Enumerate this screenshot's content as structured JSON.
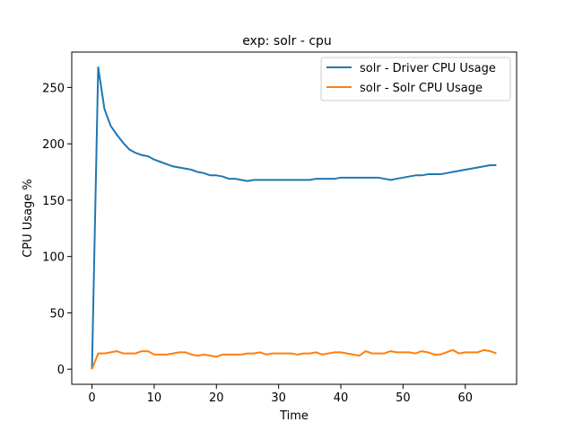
{
  "chart_data": {
    "type": "line",
    "title": "exp: solr - cpu",
    "xlabel": "Time",
    "ylabel": "CPU Usage %",
    "xlim": [
      -3.25,
      68.25
    ],
    "ylim": [
      -13.4,
      281.4
    ],
    "xticks": [
      0,
      10,
      20,
      30,
      40,
      50,
      60
    ],
    "yticks": [
      0,
      50,
      100,
      150,
      200,
      250
    ],
    "grid": false,
    "legend_position": "top-right",
    "x": [
      0,
      1,
      2,
      3,
      4,
      5,
      6,
      7,
      8,
      9,
      10,
      11,
      12,
      13,
      14,
      15,
      16,
      17,
      18,
      19,
      20,
      21,
      22,
      23,
      24,
      25,
      26,
      27,
      28,
      29,
      30,
      31,
      32,
      33,
      34,
      35,
      36,
      37,
      38,
      39,
      40,
      41,
      42,
      43,
      44,
      45,
      46,
      47,
      48,
      49,
      50,
      51,
      52,
      53,
      54,
      55,
      56,
      57,
      58,
      59,
      60,
      61,
      62,
      63,
      64,
      65
    ],
    "series": [
      {
        "name": "solr - Driver CPU Usage",
        "color": "#1f77b4",
        "values": [
          0,
          268,
          231,
          216,
          208,
          201,
          195,
          192,
          190,
          189,
          186,
          184,
          182,
          180,
          179,
          178,
          177,
          175,
          174,
          172,
          172,
          171,
          169,
          169,
          168,
          167,
          168,
          168,
          168,
          168,
          168,
          168,
          168,
          168,
          168,
          168,
          169,
          169,
          169,
          169,
          170,
          170,
          170,
          170,
          170,
          170,
          170,
          169,
          168,
          169,
          170,
          171,
          172,
          172,
          173,
          173,
          173,
          174,
          175,
          176,
          177,
          178,
          179,
          180,
          181,
          181
        ]
      },
      {
        "name": "solr - Solr CPU Usage",
        "color": "#ff7f0e",
        "values": [
          0,
          14,
          14,
          15,
          16,
          14,
          14,
          14,
          16,
          16,
          13,
          13,
          13,
          14,
          15,
          15,
          13,
          12,
          13,
          12,
          11,
          13,
          13,
          13,
          13,
          14,
          14,
          15,
          13,
          14,
          14,
          14,
          14,
          13,
          14,
          14,
          15,
          13,
          14,
          15,
          15,
          14,
          13,
          12,
          16,
          14,
          14,
          14,
          16,
          15,
          15,
          15,
          14,
          16,
          15,
          13,
          13,
          15,
          17,
          14,
          15,
          15,
          15,
          17,
          16,
          14
        ]
      }
    ]
  }
}
